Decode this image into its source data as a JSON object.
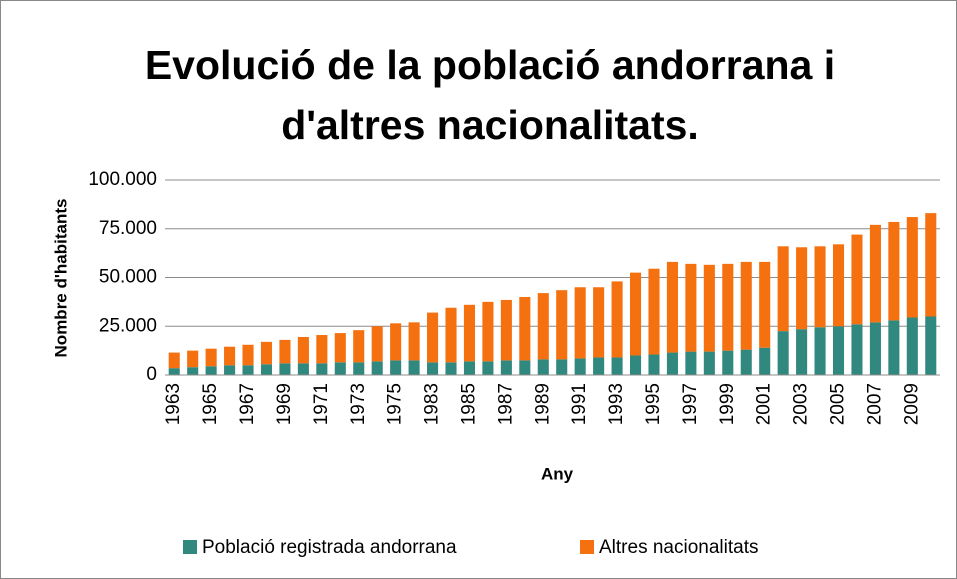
{
  "chart_data": {
    "type": "stacked_bar",
    "title": "Evolució de la població andorrana i d'altres nacionalitats.",
    "title_lines": [
      "Evolució de la població andorrana i",
      "d'altres nacionalitats."
    ],
    "xlabel": "Any",
    "ylabel": "Nombre d'habitants",
    "categories": [
      "1963",
      null,
      "1965",
      null,
      "1967",
      null,
      "1969",
      null,
      "1971",
      null,
      "1973",
      null,
      "1975",
      null,
      "1983",
      null,
      "1985",
      null,
      "1987",
      null,
      "1989",
      null,
      "1991",
      null,
      "1993",
      null,
      "1995",
      null,
      "1997",
      null,
      "1999",
      null,
      "2001",
      null,
      "2003",
      null,
      "2005",
      null,
      "2007",
      null,
      "2009",
      null
    ],
    "series": [
      {
        "name": "Població registrada andorrana",
        "color": "#31887f",
        "values": [
          3500,
          4000,
          4500,
          5000,
          5000,
          5500,
          6000,
          6000,
          6000,
          6500,
          6500,
          7000,
          7500,
          7500,
          6500,
          6500,
          7000,
          7000,
          7500,
          7500,
          8000,
          8000,
          8500,
          9000,
          9000,
          10000,
          10500,
          11500,
          12000,
          12000,
          12500,
          13000,
          14000,
          22500,
          23500,
          24500,
          25000,
          26000,
          27000,
          28000,
          29500,
          30000
        ]
      },
      {
        "name": "Altres nacionalitats",
        "color": "#f5700f",
        "values": [
          8000,
          8500,
          9000,
          9500,
          10500,
          11500,
          12000,
          13500,
          14500,
          15000,
          16500,
          18000,
          19000,
          19500,
          25500,
          28000,
          29000,
          30500,
          31000,
          32500,
          34000,
          35500,
          36500,
          36000,
          39000,
          42500,
          44000,
          46500,
          45000,
          44500,
          44500,
          45000,
          44000,
          43500,
          42000,
          41500,
          42000,
          46000,
          50000,
          50500,
          51500,
          53000
        ]
      }
    ],
    "ylim": [
      0,
      100000
    ],
    "yticks": [
      0,
      {
        "value": 25000,
        "label": "25.000"
      },
      {
        "value": 50000,
        "label": "50.000"
      },
      {
        "value": 75000,
        "label": "75.000"
      },
      {
        "value": 100000,
        "label": "100.000"
      }
    ],
    "grid": true,
    "legend": "bottom"
  }
}
